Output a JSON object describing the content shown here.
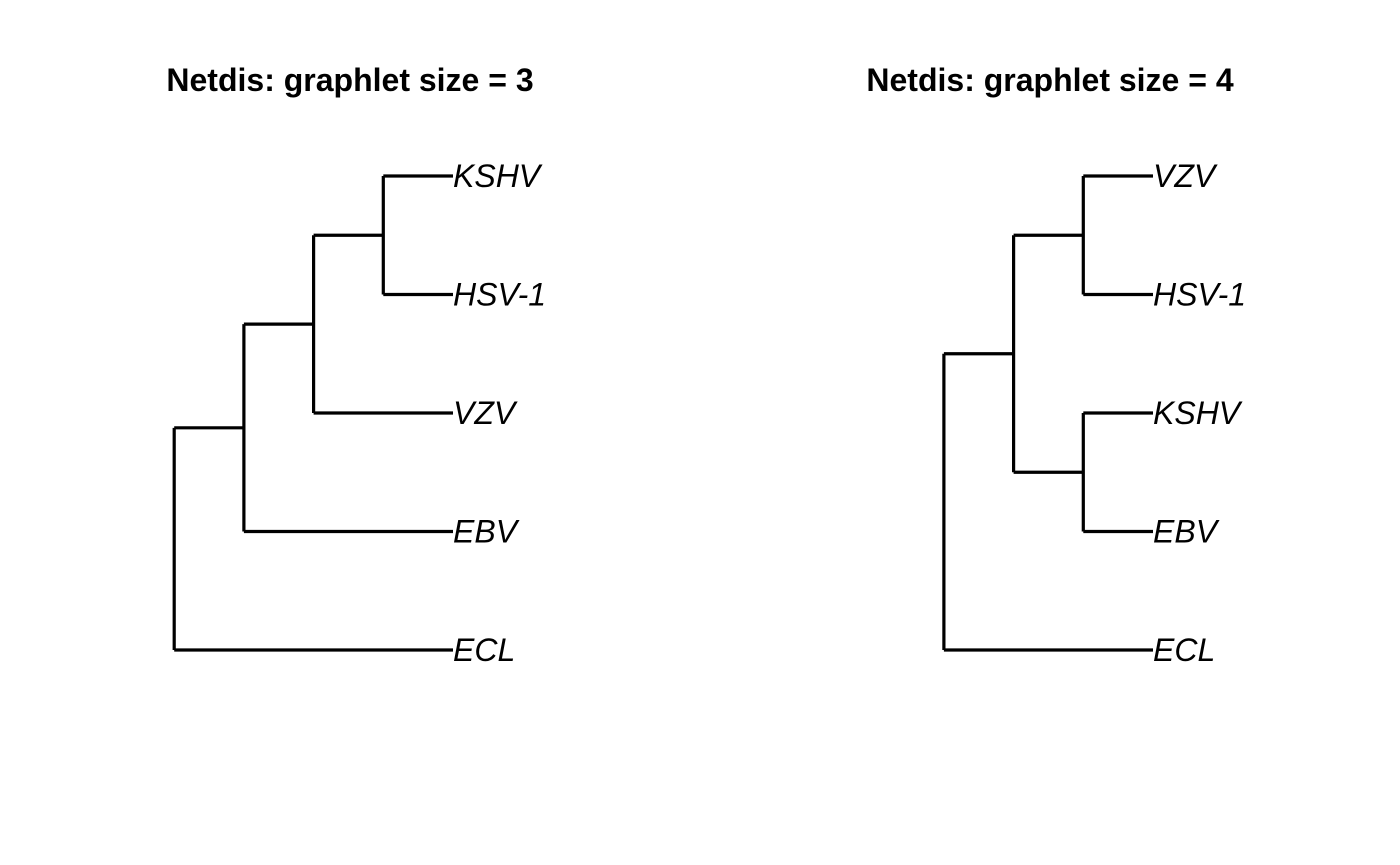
{
  "figure": {
    "panels": [
      {
        "title": "Netdis: graphlet size = 3",
        "tips": [
          "KSHV",
          "HSV-1",
          "VZV",
          "EBV",
          "ECL"
        ],
        "tree": {
          "children": [
            {
              "children": [
                {
                  "children": [
                    {
                      "children": [
                        {
                          "tip": 0
                        },
                        {
                          "tip": 1
                        }
                      ]
                    },
                    {
                      "tip": 2
                    }
                  ]
                },
                {
                  "tip": 3
                }
              ]
            },
            {
              "tip": 4
            }
          ]
        }
      },
      {
        "title": "Netdis: graphlet size = 4",
        "tips": [
          "VZV",
          "HSV-1",
          "KSHV",
          "EBV",
          "ECL"
        ],
        "tree": {
          "children": [
            {
              "children": [
                {
                  "children": [
                    {
                      "tip": 0
                    },
                    {
                      "tip": 1
                    }
                  ]
                },
                {
                  "children": [
                    {
                      "tip": 2
                    },
                    {
                      "tip": 3
                    }
                  ]
                }
              ]
            },
            {
              "tip": 4
            }
          ]
        }
      }
    ]
  }
}
